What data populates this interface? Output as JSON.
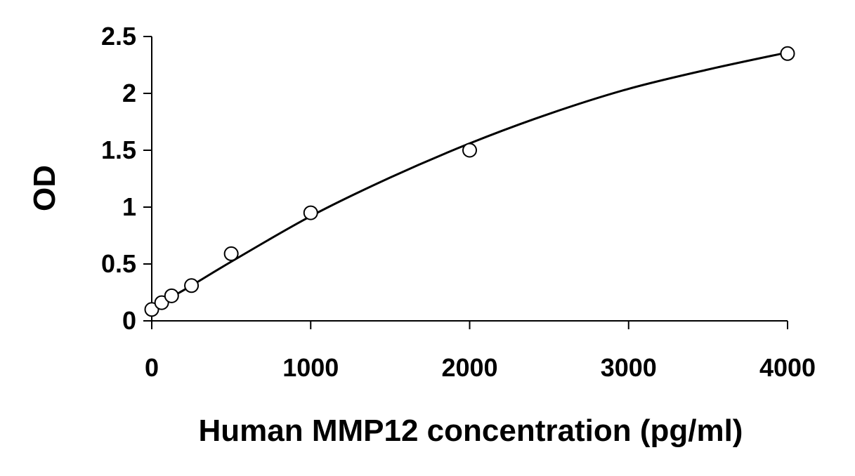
{
  "chart_data": {
    "type": "scatter",
    "xlabel": "Human MMP12 concentration (pg/ml)",
    "ylabel": "OD",
    "xlim": [
      0,
      4000
    ],
    "ylim": [
      0,
      2.5
    ],
    "x_ticks": [
      "0",
      "1000",
      "2000",
      "3000",
      "4000"
    ],
    "y_ticks": [
      "0",
      "0.5",
      "1",
      "1.5",
      "2",
      "2.5"
    ],
    "grid": false,
    "legend": "none",
    "series": [
      {
        "marker": "open-circle",
        "points": [
          {
            "x": 0,
            "y": 0.1
          },
          {
            "x": 62.5,
            "y": 0.16
          },
          {
            "x": 125,
            "y": 0.22
          },
          {
            "x": 250,
            "y": 0.31
          },
          {
            "x": 500,
            "y": 0.59
          },
          {
            "x": 1000,
            "y": 0.95
          },
          {
            "x": 2000,
            "y": 1.5
          },
          {
            "x": 4000,
            "y": 2.35
          }
        ]
      }
    ],
    "fit_curve": {
      "shape": "smooth monotone fit through standards",
      "points": [
        {
          "x": 0,
          "y": 0.11
        },
        {
          "x": 250,
          "y": 0.31
        },
        {
          "x": 500,
          "y": 0.52
        },
        {
          "x": 1000,
          "y": 0.92
        },
        {
          "x": 1500,
          "y": 1.26
        },
        {
          "x": 2000,
          "y": 1.56
        },
        {
          "x": 2500,
          "y": 1.82
        },
        {
          "x": 3000,
          "y": 2.04
        },
        {
          "x": 3500,
          "y": 2.21
        },
        {
          "x": 4000,
          "y": 2.36
        }
      ]
    },
    "colors": {
      "marker": "#000000",
      "line": "#000000",
      "background": "#ffffff"
    }
  }
}
